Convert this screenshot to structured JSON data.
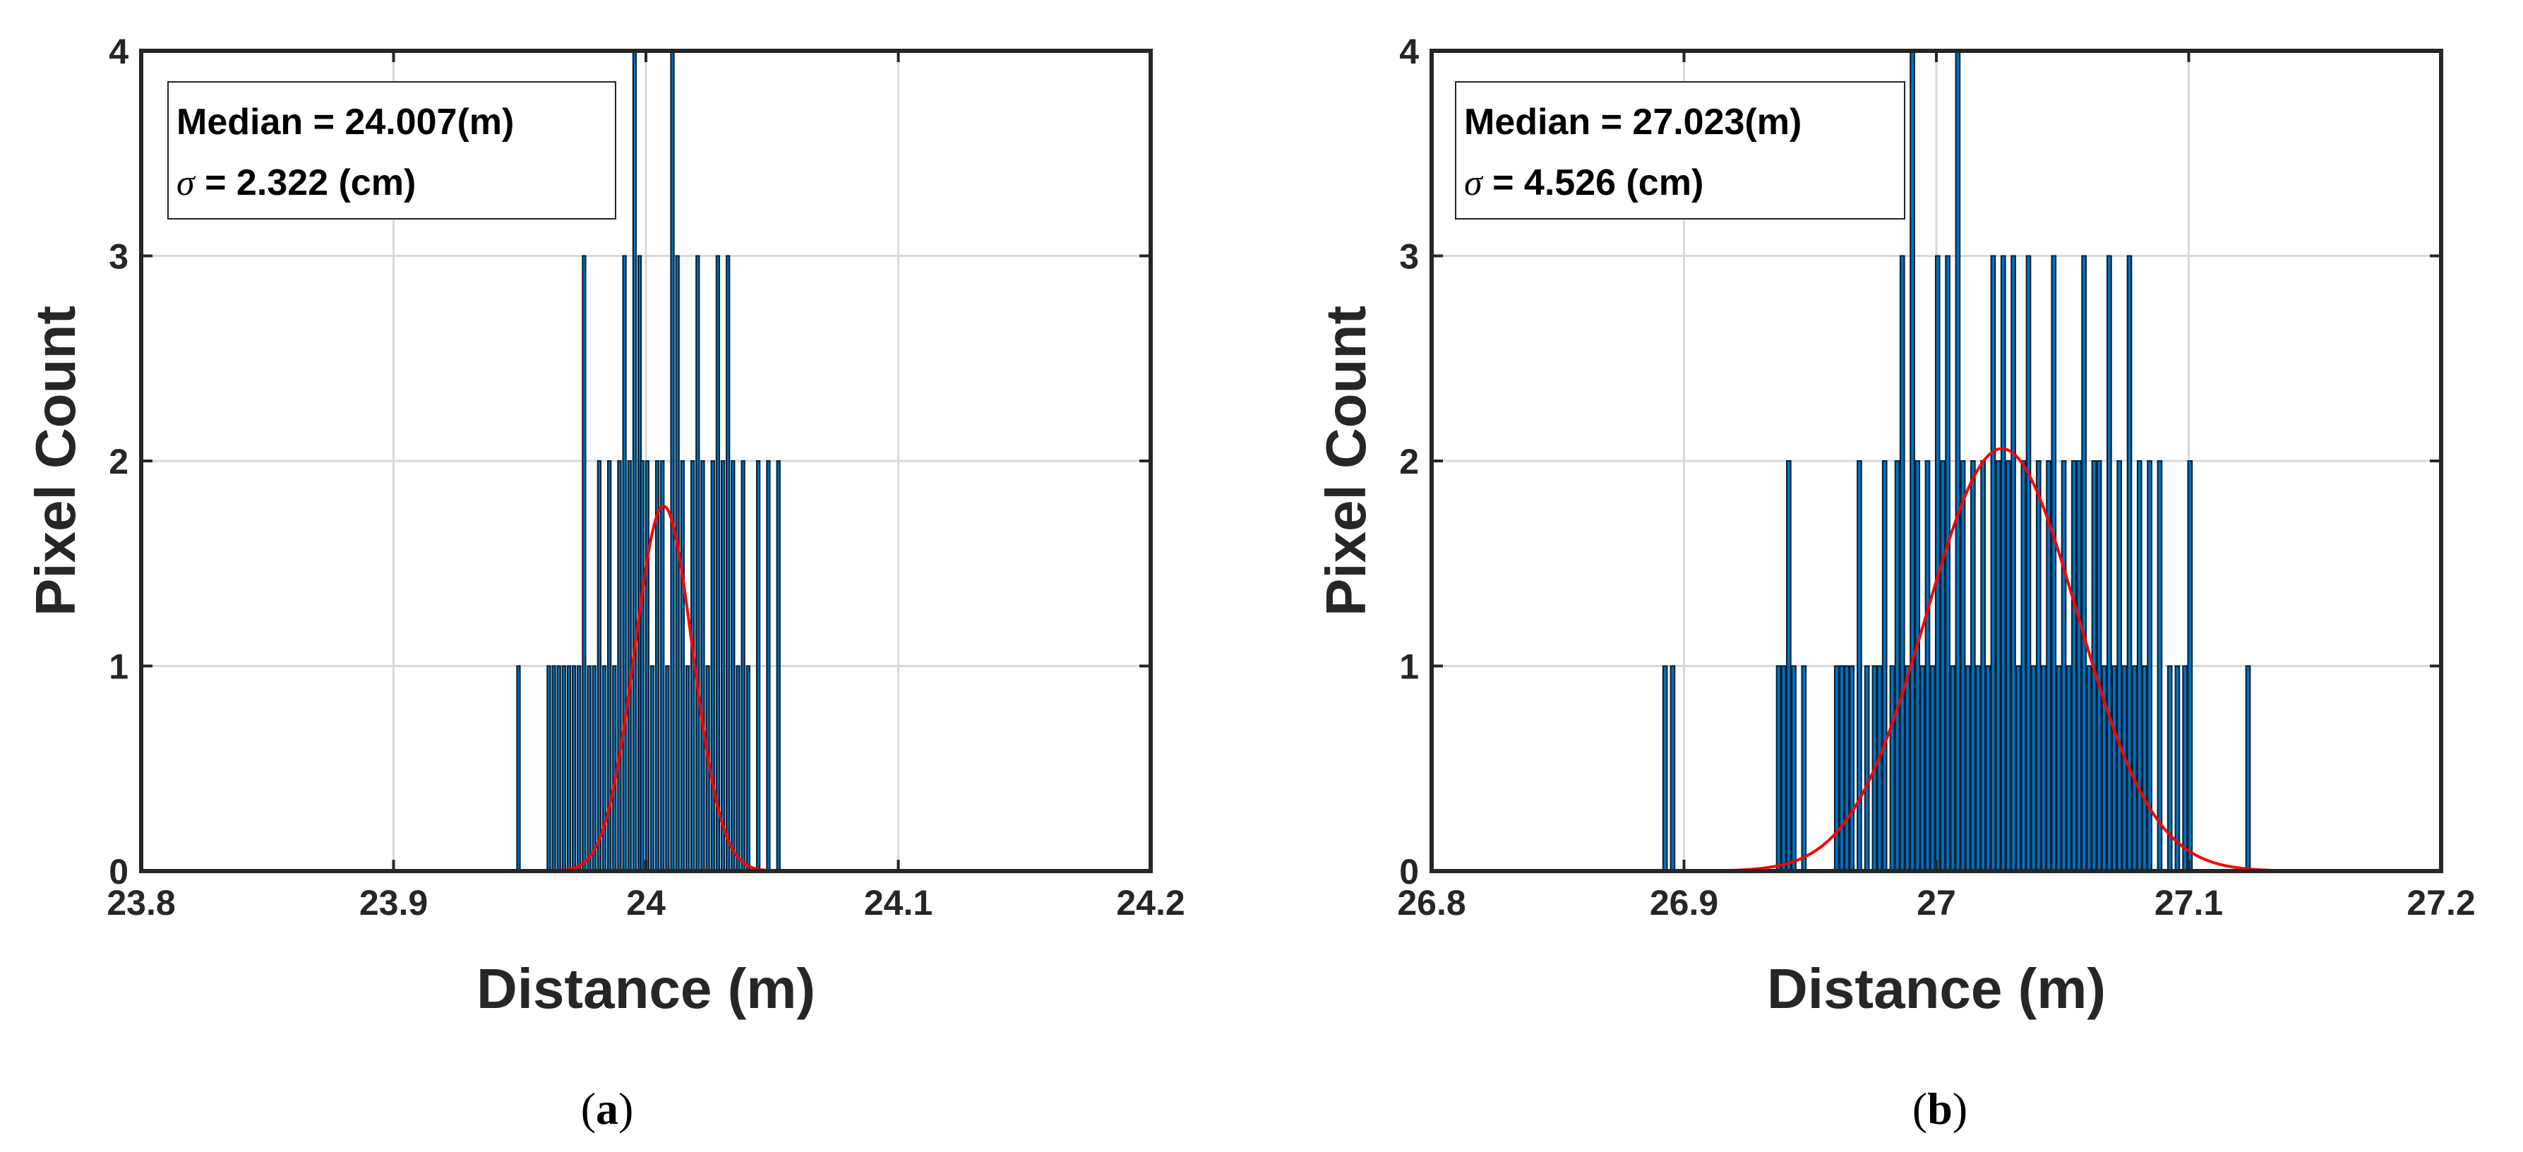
{
  "chart_data": [
    {
      "id": "a",
      "type": "bar",
      "subtype": "histogram_with_gaussian_fit",
      "panel_label": "(a)",
      "panel_letter": "a",
      "xlabel": "Distance (m)",
      "ylabel": "Pixel Count",
      "xlim": [
        23.8,
        24.2
      ],
      "ylim": [
        0,
        4
      ],
      "xticks": [
        23.8,
        23.9,
        24.0,
        24.1,
        24.2
      ],
      "xtick_labels": [
        "23.8",
        "23.9",
        "24",
        "24.1",
        "24.2"
      ],
      "yticks": [
        0,
        1,
        2,
        3,
        4
      ],
      "ytick_labels": [
        "0",
        "1",
        "2",
        "3",
        "4"
      ],
      "grid": true,
      "legend_position": "top-left",
      "annotation": {
        "line1": "Median = 24.007(m)",
        "sigma_symbol": "σ",
        "line2_rest": " = 2.322 (cm)"
      },
      "bar_color": "#0072BD",
      "bar_edge_color": "#0B1F33",
      "bar_width": 0.0012,
      "histogram": {
        "x": [
          23.9495,
          23.9615,
          23.9635,
          23.9655,
          23.9675,
          23.9695,
          23.9715,
          23.9735,
          23.9755,
          23.9775,
          23.9795,
          23.9815,
          23.9835,
          23.9855,
          23.9875,
          23.9895,
          23.9915,
          23.9935,
          23.9955,
          23.9975,
          23.9985,
          24.0005,
          24.0025,
          24.0045,
          24.0065,
          24.0085,
          24.0105,
          24.0125,
          24.0145,
          24.0165,
          24.0185,
          24.0205,
          24.0225,
          24.0245,
          24.0265,
          24.0285,
          24.0305,
          24.0325,
          24.0345,
          24.0365,
          24.0385,
          24.0405,
          24.0445,
          24.0485,
          24.0525
        ],
        "counts": [
          1,
          1,
          1,
          1,
          1,
          1,
          1,
          1,
          3,
          1,
          1,
          2,
          1,
          2,
          1,
          2,
          3,
          2,
          4,
          3,
          2,
          2,
          1,
          2,
          2,
          1,
          4,
          3,
          2,
          1,
          2,
          3,
          2,
          1,
          2,
          3,
          2,
          3,
          2,
          1,
          2,
          1,
          2,
          2,
          2
        ]
      },
      "fit": {
        "color": "#FF0000",
        "mu": 24.007,
        "sigma": 0.0115,
        "peak": 1.78,
        "x_range": [
          23.937,
          24.077
        ]
      }
    },
    {
      "id": "b",
      "type": "bar",
      "subtype": "histogram_with_gaussian_fit",
      "panel_label": "(b)",
      "panel_letter": "b",
      "xlabel": "Distance (m)",
      "ylabel": "Pixel Count",
      "xlim": [
        26.8,
        27.2
      ],
      "ylim": [
        0,
        4
      ],
      "xticks": [
        26.8,
        26.9,
        27.0,
        27.1,
        27.2
      ],
      "xtick_labels": [
        "26.8",
        "26.9",
        "27",
        "27.1",
        "27.2"
      ],
      "yticks": [
        0,
        1,
        2,
        3,
        4
      ],
      "ytick_labels": [
        "0",
        "1",
        "2",
        "3",
        "4"
      ],
      "grid": true,
      "legend_position": "top-left",
      "annotation": {
        "line1": "Median = 27.023(m)",
        "sigma_symbol": "σ",
        "line2_rest": " = 4.526 (cm)"
      },
      "bar_color": "#0072BD",
      "bar_edge_color": "#0B1F33",
      "bar_width": 0.0016,
      "histogram": {
        "x": [
          26.8925,
          26.8955,
          26.9375,
          26.9395,
          26.9415,
          26.9435,
          26.9475,
          26.9605,
          26.9625,
          26.9645,
          26.9665,
          26.9695,
          26.9725,
          26.9755,
          26.9775,
          26.9795,
          26.9825,
          26.9845,
          26.9865,
          26.9885,
          26.9905,
          26.9925,
          26.9945,
          26.9965,
          26.9985,
          27.0005,
          27.0025,
          27.0045,
          27.0065,
          27.0085,
          27.0105,
          27.0125,
          27.0145,
          27.0165,
          27.0185,
          27.0205,
          27.0225,
          27.0245,
          27.0265,
          27.0285,
          27.0305,
          27.0325,
          27.0345,
          27.0365,
          27.0385,
          27.0405,
          27.0425,
          27.0445,
          27.0465,
          27.0485,
          27.0505,
          27.0525,
          27.0545,
          27.0565,
          27.0585,
          27.0605,
          27.0625,
          27.0645,
          27.0665,
          27.0685,
          27.0705,
          27.0725,
          27.0745,
          27.0765,
          27.0785,
          27.0805,
          27.0825,
          27.0845,
          27.0885,
          27.0925,
          27.0955,
          27.0985,
          27.1005,
          27.1235
        ],
        "counts": [
          1,
          1,
          1,
          1,
          2,
          1,
          1,
          1,
          1,
          1,
          1,
          2,
          1,
          1,
          1,
          2,
          1,
          2,
          3,
          1,
          4,
          2,
          1,
          2,
          1,
          3,
          2,
          3,
          1,
          4,
          2,
          1,
          2,
          1,
          2,
          1,
          3,
          2,
          3,
          2,
          3,
          1,
          2,
          3,
          1,
          2,
          1,
          2,
          3,
          1,
          2,
          1,
          2,
          2,
          3,
          1,
          2,
          2,
          1,
          3,
          1,
          2,
          1,
          3,
          1,
          2,
          1,
          2,
          2,
          1,
          1,
          1,
          2,
          1
        ]
      },
      "fit": {
        "color": "#FF0000",
        "mu": 27.026,
        "sigma": 0.03,
        "peak": 2.06,
        "x_range": [
          26.888,
          27.16
        ]
      }
    }
  ]
}
